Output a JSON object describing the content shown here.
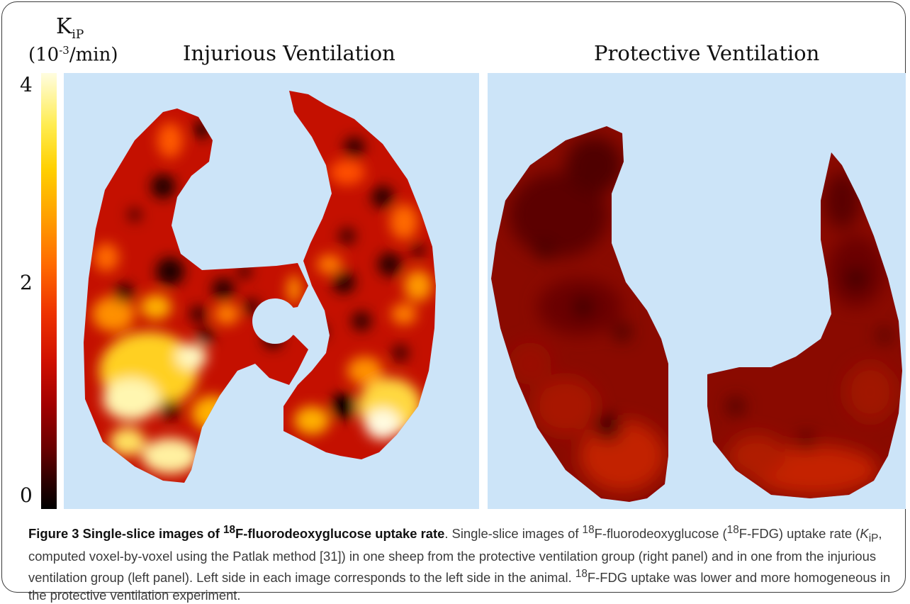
{
  "colorbar": {
    "symbol": "K",
    "symbol_sub": "iP",
    "unit_open": "(10",
    "unit_exp": "-3",
    "unit_close": "/min)",
    "tick_max": "4",
    "tick_mid": "2",
    "tick_min": "0",
    "colormap": "hot"
  },
  "panels": {
    "left_title": "Injurious Ventilation",
    "right_title": "Protective Ventilation",
    "background_color": "#cce4f8"
  },
  "caption": {
    "figure_label": "Figure 3",
    "title_pre": " Single-slice images of ",
    "title_sup": "18",
    "title_post": "F-fluorodeoxyglucose uptake rate",
    "p1": ". Single-slice images of ",
    "s1": "18",
    "p2": "F-fluorodeoxyglucose (",
    "s2": "18",
    "p3": "F-FDG) uptake rate (",
    "kip_k": "K",
    "kip_sub": "iP",
    "p4": ", computed voxel-by-voxel using the Patlak method [31]) in one sheep from the protective ventilation group (right panel) and in one from the injurious ventilation group (left panel). Left side in each image corresponds to the left side in the animal. ",
    "s3": "18",
    "p5": "F-FDG uptake was lower and more homogeneous in the protective ventilation experiment."
  }
}
